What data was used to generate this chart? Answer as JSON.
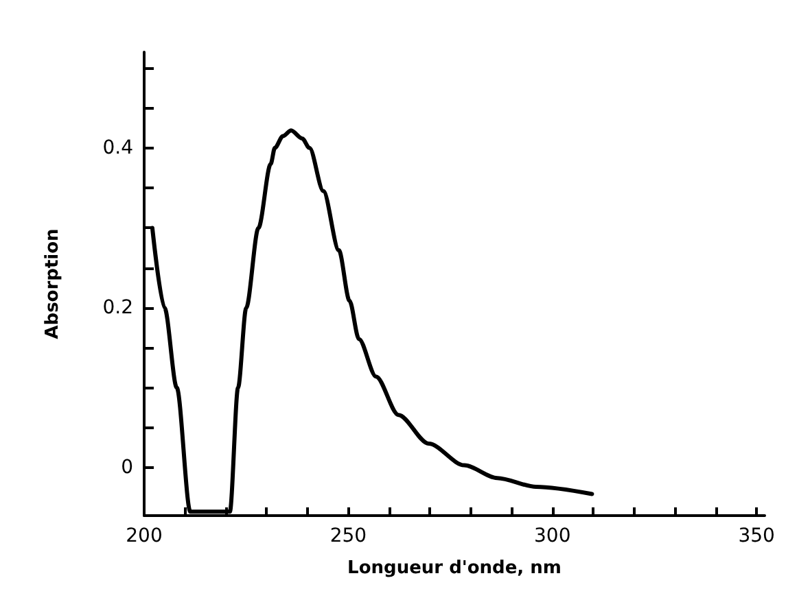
{
  "chart_data": {
    "type": "line",
    "xlabel": "Longueur d'onde, nm",
    "ylabel": "Absorption",
    "x": [
      202,
      205,
      208,
      211.3,
      212,
      221,
      223,
      225,
      228,
      231,
      232,
      234,
      236,
      238.7,
      240.5,
      243.9,
      247.7,
      250.3,
      252.6,
      256.8,
      262.3,
      269.7,
      278.4,
      286.5,
      296,
      309.7
    ],
    "series": [
      {
        "color": "#000000",
        "values": [
          0.3,
          0.2,
          0.1,
          -0.055,
          -0.055,
          -0.055,
          0.1,
          0.2,
          0.3,
          0.38,
          0.4,
          0.415,
          0.422,
          0.412,
          0.4,
          0.346,
          0.272,
          0.209,
          0.161,
          0.114,
          0.066,
          0.03,
          0.003,
          -0.013,
          -0.024,
          -0.033
        ]
      }
    ],
    "xlim": [
      200,
      352
    ],
    "ylim": [
      -0.06,
      0.52
    ],
    "xticks": [
      200,
      {
        "value": 210,
        "label": null
      },
      {
        "value": 220,
        "label": null
      },
      {
        "value": 230,
        "label": null
      },
      {
        "value": 240,
        "label": null
      },
      250,
      {
        "value": 260,
        "label": null
      },
      {
        "value": 270,
        "label": null
      },
      {
        "value": 280,
        "label": null
      },
      {
        "value": 290,
        "label": null
      },
      300,
      {
        "value": 310,
        "label": null
      },
      {
        "value": 320,
        "label": null
      },
      {
        "value": 330,
        "label": null
      },
      {
        "value": 340,
        "label": null
      },
      350
    ],
    "yticks": [
      0,
      {
        "value": 0.05,
        "label": null
      },
      {
        "value": 0.1,
        "label": null
      },
      {
        "value": 0.15,
        "label": null
      },
      0.2,
      {
        "value": 0.25,
        "label": null
      },
      {
        "value": 0.3,
        "label": null
      },
      {
        "value": 0.35,
        "label": null
      },
      0.4,
      {
        "value": 0.45,
        "label": null
      },
      {
        "value": 0.5,
        "label": null
      }
    ],
    "grid": false,
    "marker": "none",
    "line_style": "solid"
  }
}
